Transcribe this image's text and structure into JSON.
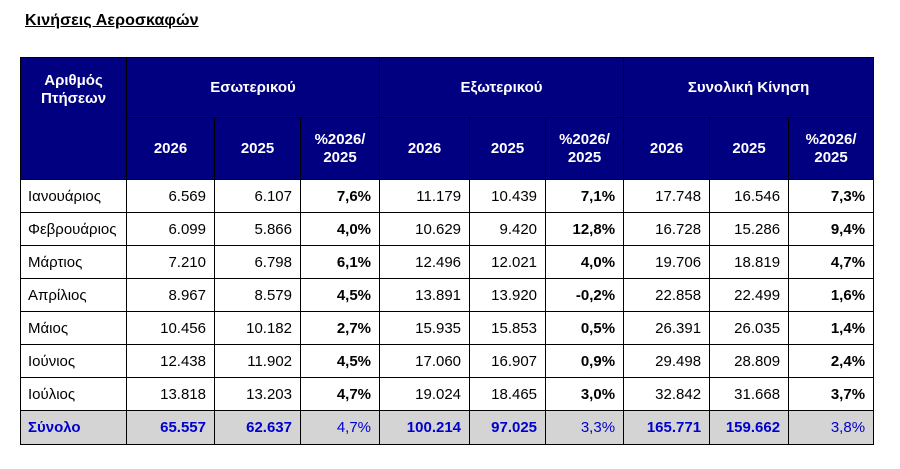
{
  "title": "Κινήσεις Αεροσκαφών",
  "header": {
    "row_label": "Αριθμός Πτήσεων",
    "groups": [
      "Εσωτερικού",
      "Εξωτερικού",
      "Συνολική Κίνηση"
    ],
    "sub": [
      "2026",
      "2025",
      "%2026/ 2025"
    ]
  },
  "rows": [
    {
      "month": "Ιανουάριος",
      "vals": [
        "6.569",
        "6.107",
        "7,6%",
        "11.179",
        "10.439",
        "7,1%",
        "17.748",
        "16.546",
        "7,3%"
      ]
    },
    {
      "month": "Φεβρουάριος",
      "vals": [
        "6.099",
        "5.866",
        "4,0%",
        "10.629",
        "9.420",
        "12,8%",
        "16.728",
        "15.286",
        "9,4%"
      ]
    },
    {
      "month": "Μάρτιος",
      "vals": [
        "7.210",
        "6.798",
        "6,1%",
        "12.496",
        "12.021",
        "4,0%",
        "19.706",
        "18.819",
        "4,7%"
      ]
    },
    {
      "month": "Απρίλιος",
      "vals": [
        "8.967",
        "8.579",
        "4,5%",
        "13.891",
        "13.920",
        "-0,2%",
        "22.858",
        "22.499",
        "1,6%"
      ]
    },
    {
      "month": "Μάιος",
      "vals": [
        "10.456",
        "10.182",
        "2,7%",
        "15.935",
        "15.853",
        "0,5%",
        "26.391",
        "26.035",
        "1,4%"
      ]
    },
    {
      "month": "Ιούνιος",
      "vals": [
        "12.438",
        "11.902",
        "4,5%",
        "17.060",
        "16.907",
        "0,9%",
        "29.498",
        "28.809",
        "2,4%"
      ]
    },
    {
      "month": "Ιούλιος",
      "vals": [
        "13.818",
        "13.203",
        "4,7%",
        "19.024",
        "18.465",
        "3,0%",
        "32.842",
        "31.668",
        "3,7%"
      ]
    }
  ],
  "total": {
    "label": "Σύνολο",
    "vals": [
      "65.557",
      "62.637",
      "4,7%",
      "100.214",
      "97.025",
      "3,3%",
      "165.771",
      "159.662",
      "3,8%"
    ]
  },
  "colors": {
    "header_bg": "#000080",
    "header_text": "#ffffff",
    "total_bg": "#d4d4d4",
    "total_text": "#0000cc"
  }
}
